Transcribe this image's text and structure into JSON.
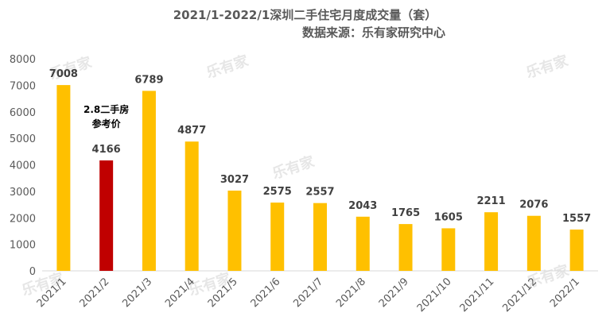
{
  "chart_data": {
    "type": "bar",
    "title": "2021/1-2022/1深圳二手住宅月度成交量（套）",
    "subtitle": "数据来源：乐有家研究中心",
    "categories": [
      "2021/1",
      "2021/2",
      "2021/3",
      "2021/4",
      "2021/5",
      "2021/6",
      "2021/7",
      "2021/8",
      "2021/9",
      "2021/10",
      "2021/11",
      "2021/12",
      "2022/1"
    ],
    "values": [
      7008,
      4166,
      6789,
      4877,
      3027,
      2575,
      2557,
      2043,
      1765,
      1605,
      2211,
      2076,
      1557
    ],
    "ylim": [
      0,
      8000
    ],
    "yticks": [
      0,
      1000,
      2000,
      3000,
      4000,
      5000,
      6000,
      7000,
      8000
    ],
    "bar_color": "#ffc000",
    "highlight": {
      "index": 1,
      "color": "#c00000"
    },
    "annotation": {
      "lines": [
        "2.8二手房",
        "参考价"
      ],
      "category_index": 1
    },
    "watermark": "乐有家",
    "grid": false
  }
}
